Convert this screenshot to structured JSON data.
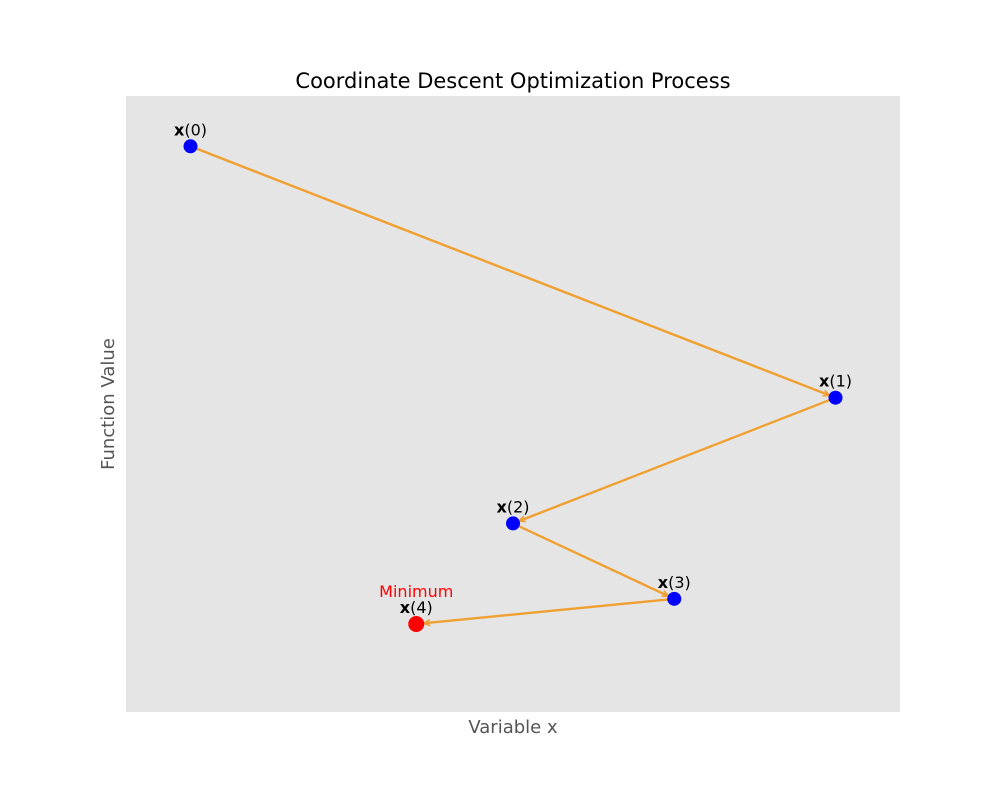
{
  "chart_data": {
    "type": "scatter",
    "title": "Coordinate Descent Optimization Process",
    "xlabel": "Variable x",
    "ylabel": "Function Value",
    "grid": false,
    "show_ticks": false,
    "background_color": "#e5e5e5",
    "path_color": "#f0a030",
    "point_color": "#0000ff",
    "minimum_color": "#ff0000",
    "points": [
      {
        "id": "x0",
        "label_bold": "x",
        "label_suffix": "(0)",
        "x": 1.0,
        "y": 9.0,
        "is_minimum": false
      },
      {
        "id": "x1",
        "label_bold": "x",
        "label_suffix": "(1)",
        "x": 9.0,
        "y": 5.0,
        "is_minimum": false
      },
      {
        "id": "x2",
        "label_bold": "x",
        "label_suffix": "(2)",
        "x": 5.0,
        "y": 3.0,
        "is_minimum": false
      },
      {
        "id": "x3",
        "label_bold": "x",
        "label_suffix": "(3)",
        "x": 7.0,
        "y": 1.8,
        "is_minimum": false
      },
      {
        "id": "x4",
        "label_bold": "x",
        "label_suffix": "(4)",
        "x": 3.8,
        "y": 1.4,
        "is_minimum": true
      }
    ],
    "annotation": {
      "text": "Minimum",
      "target": "x4",
      "color": "#ff0000"
    },
    "xlim": [
      0.2,
      9.8
    ],
    "ylim": [
      0.0,
      9.8
    ]
  }
}
